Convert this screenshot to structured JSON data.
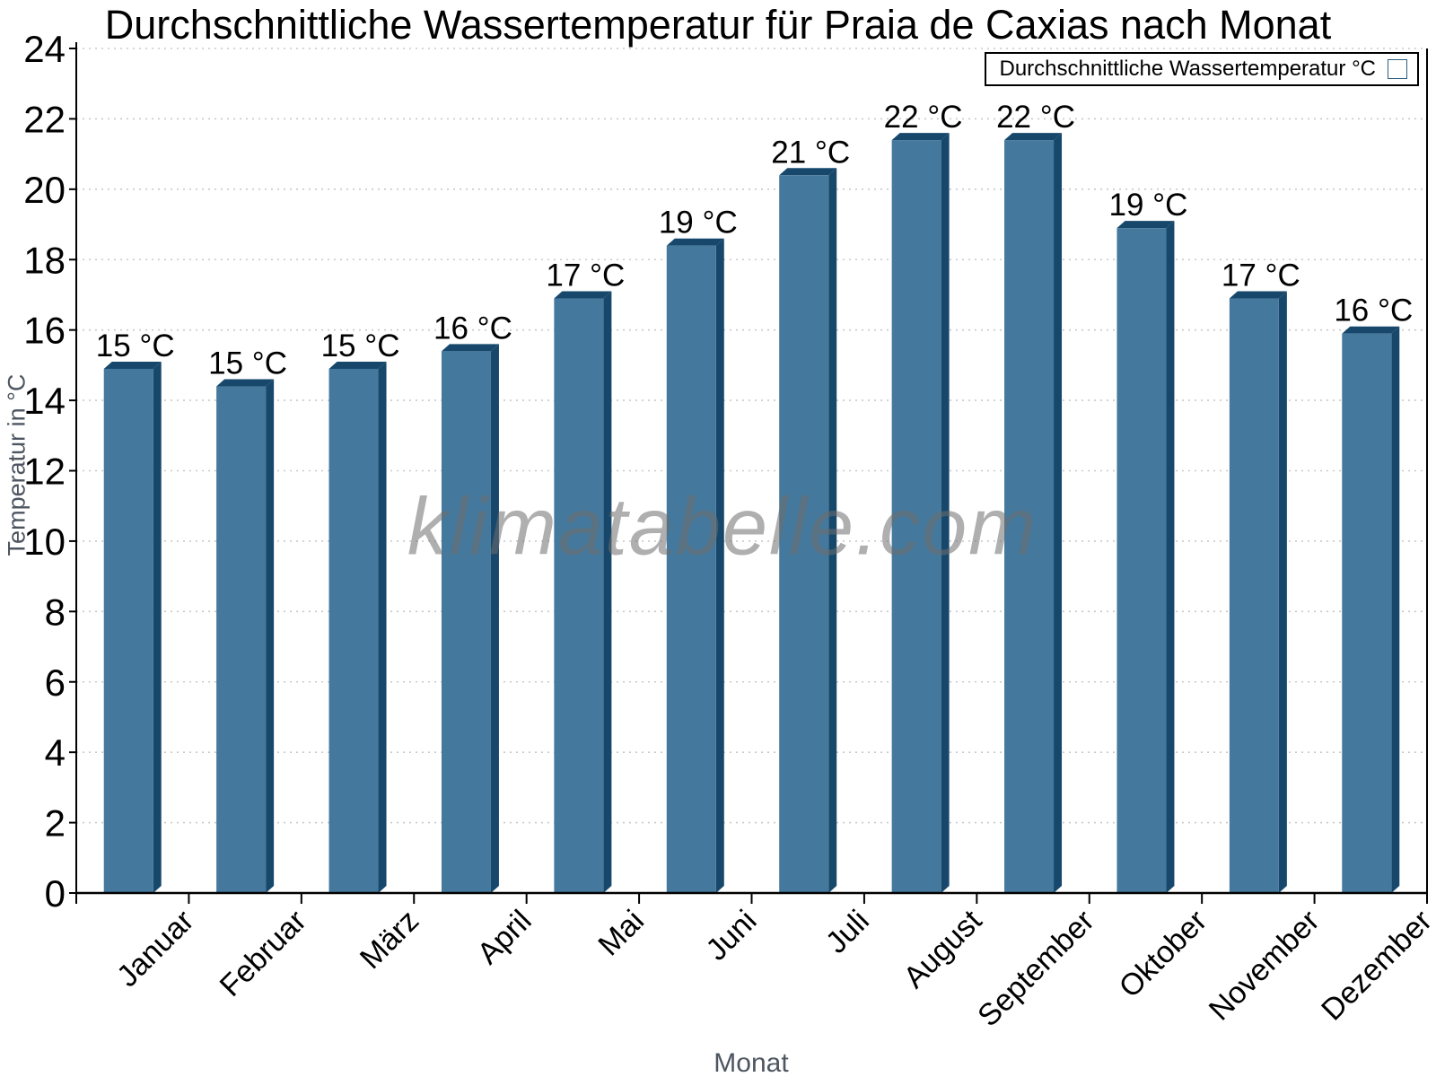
{
  "watermark": "klimatabelle.com",
  "chart_data": {
    "type": "bar",
    "title": "Durchschnittliche Wassertemperatur für Praia de Caxias nach Monat",
    "xlabel": "Monat",
    "ylabel": "Temperatur in °C",
    "categories": [
      "Januar",
      "Februar",
      "März",
      "April",
      "Mai",
      "Juni",
      "Juli",
      "August",
      "September",
      "Oktober",
      "November",
      "Dezember"
    ],
    "values": [
      15.1,
      14.6,
      15.1,
      15.6,
      17.1,
      18.6,
      20.6,
      21.6,
      21.6,
      19.1,
      17.1,
      16.1
    ],
    "data_labels": [
      "15 °C",
      "15 °C",
      "15 °C",
      "16 °C",
      "17 °C",
      "19 °C",
      "21 °C",
      "22 °C",
      "22 °C",
      "19 °C",
      "17 °C",
      "16 °C"
    ],
    "ylim": [
      0,
      24
    ],
    "yticks": [
      0,
      2,
      4,
      6,
      8,
      10,
      12,
      14,
      16,
      18,
      20,
      22,
      24
    ],
    "grid": "dotted-horizontal",
    "legend": {
      "label": "Durchschnittliche Wassertemperatur °C",
      "position": "top-right"
    },
    "colors": {
      "bar_face": "#44789c",
      "bar_shadow": "#17486b",
      "grid": "#c9c9c9",
      "axis": "#000000",
      "tick_label": "#000000",
      "axis_title": "#4d5560",
      "watermark_gray": "#6e6e6e"
    }
  }
}
